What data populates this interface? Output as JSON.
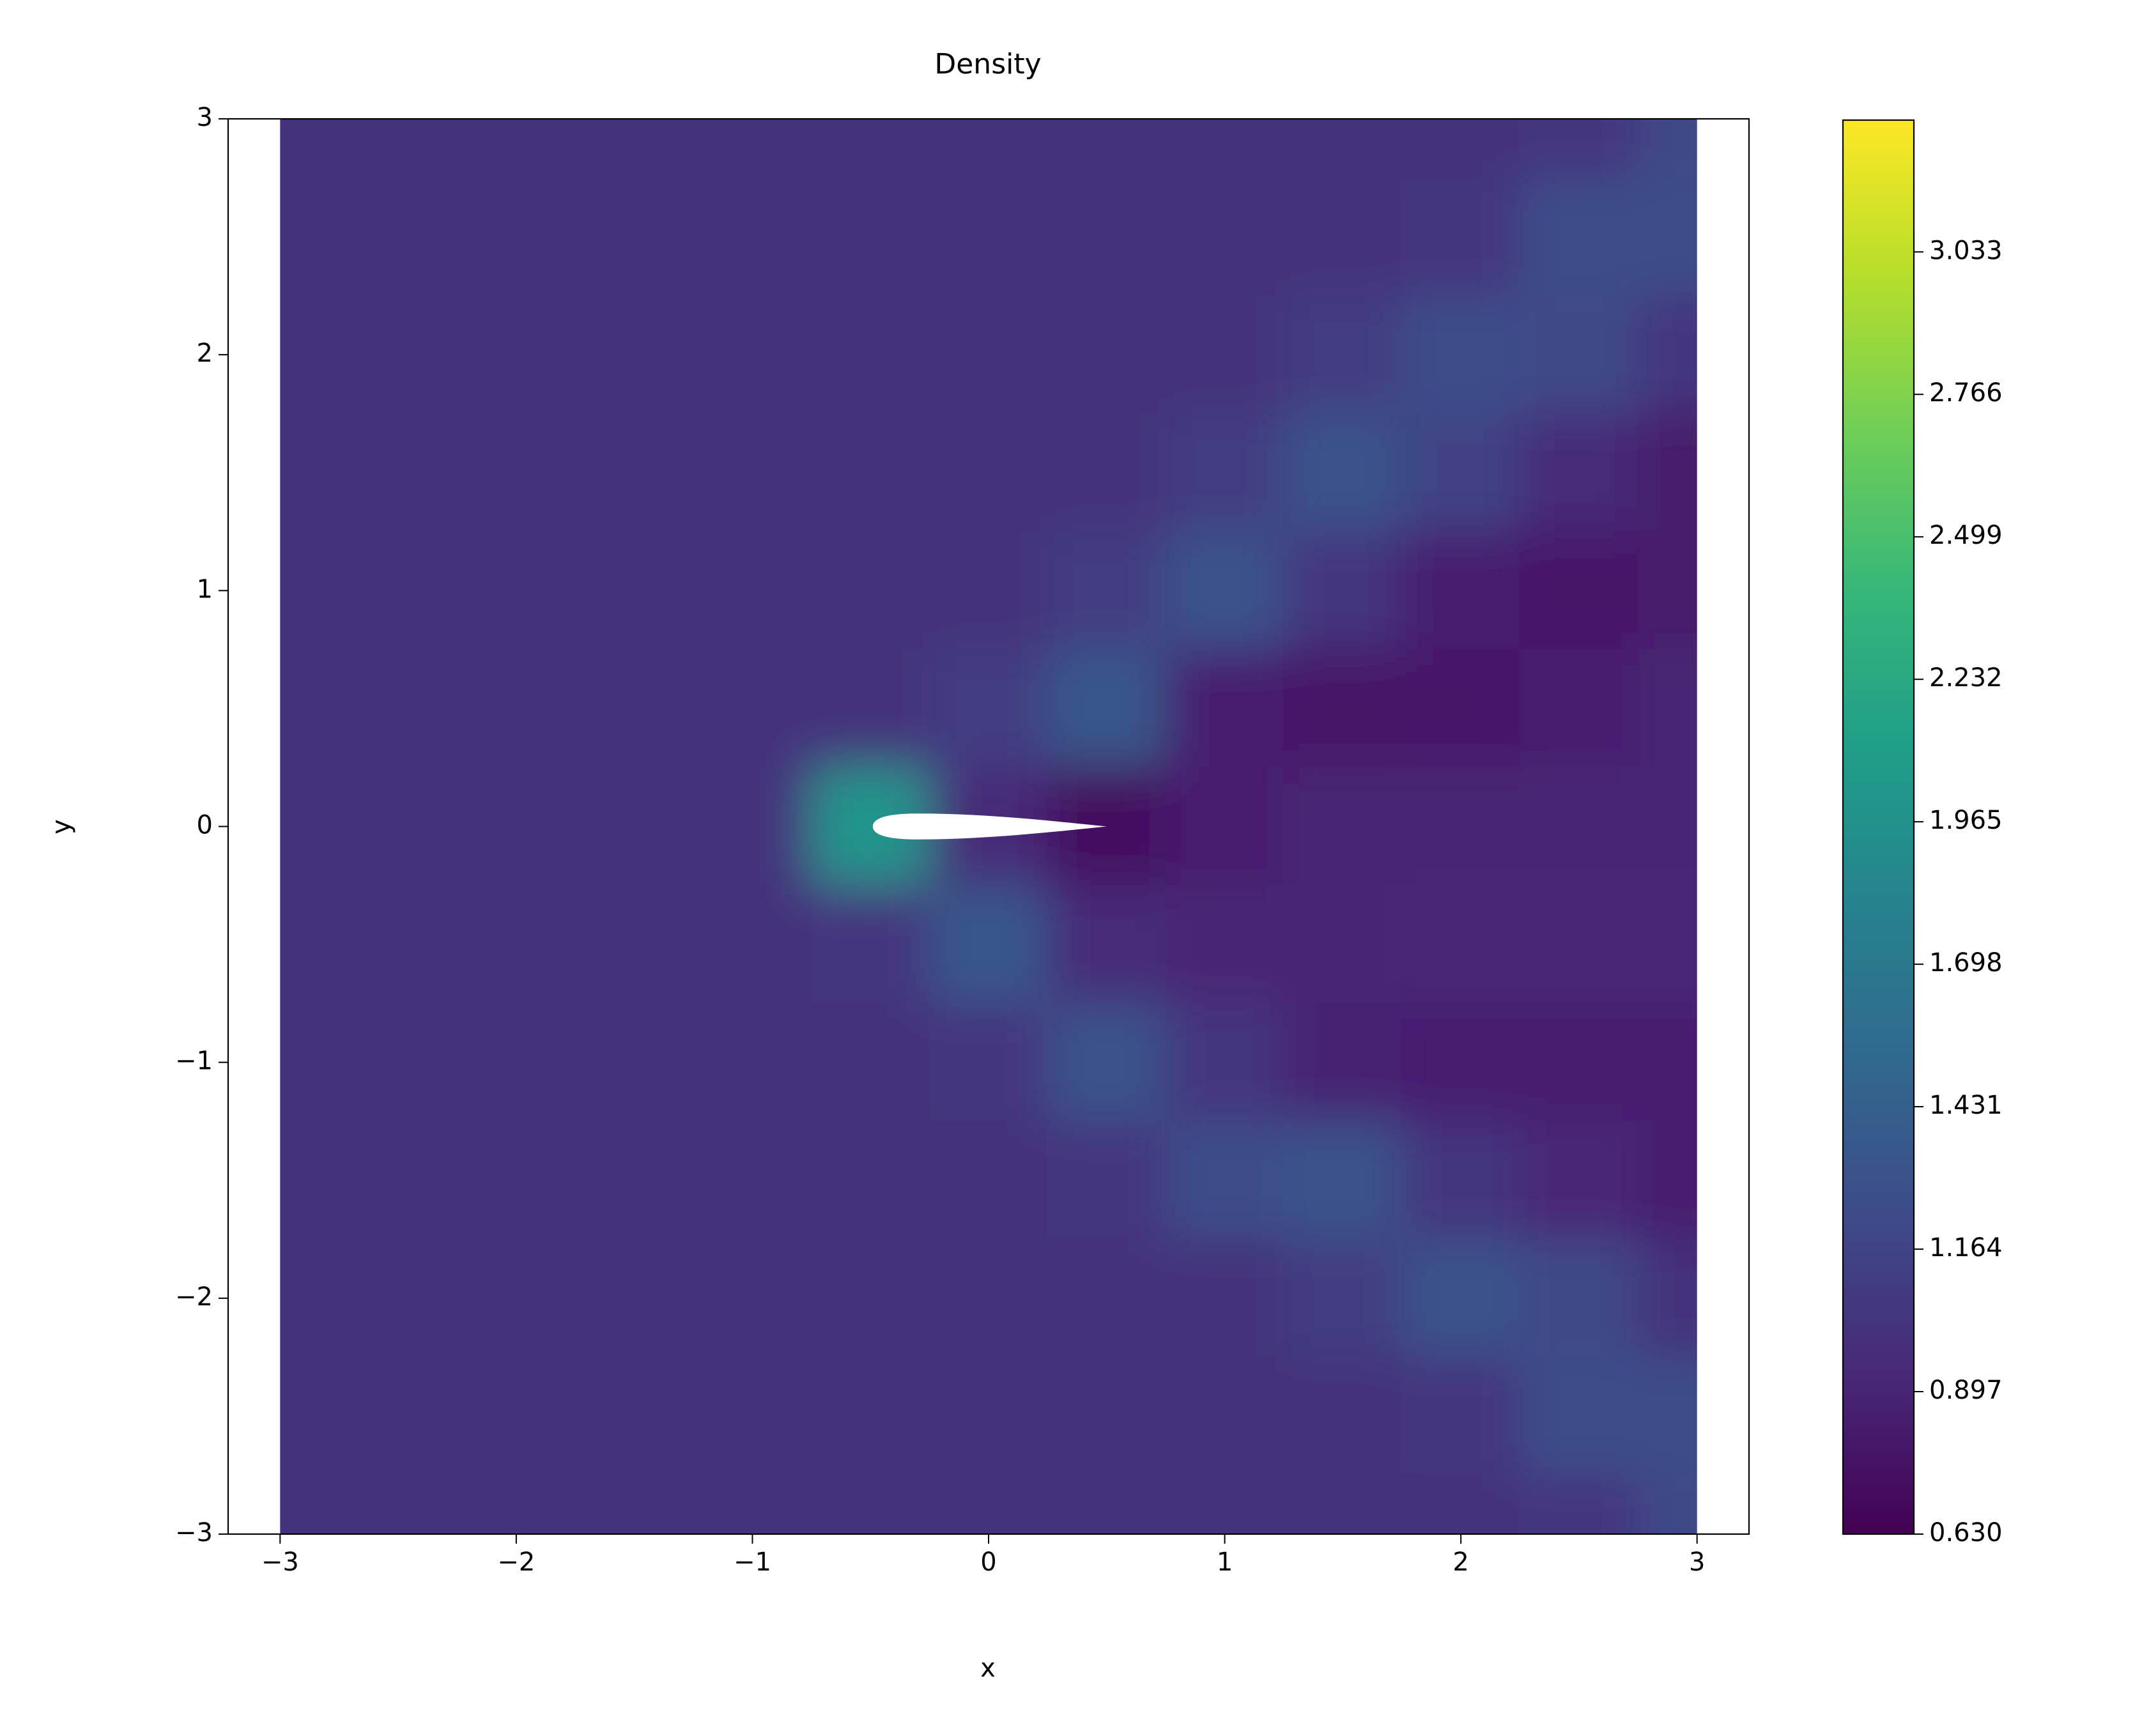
{
  "chart_data": {
    "type": "heatmap",
    "title": "Density",
    "xlabel": "x",
    "ylabel": "y",
    "x": [
      -3,
      -2.5,
      -2,
      -1.5,
      -1,
      -0.5,
      0,
      0.5,
      1,
      1.5,
      2,
      2.5,
      3
    ],
    "y": [
      3,
      2.5,
      2,
      1.5,
      1,
      0.5,
      0,
      -0.5,
      -1,
      -1.5,
      -2,
      -2.5,
      -3
    ],
    "z": [
      [
        1,
        1,
        1,
        1,
        1,
        1,
        1,
        1,
        1,
        1,
        1,
        1.05,
        1.2
      ],
      [
        1,
        1,
        1,
        1,
        1,
        1,
        1,
        1,
        1,
        1,
        1.05,
        1.25,
        1.25
      ],
      [
        1,
        1,
        1,
        1,
        1,
        1,
        1,
        1,
        1,
        1.1,
        1.25,
        1.2,
        1.05
      ],
      [
        1,
        1,
        1,
        1,
        1,
        1,
        1,
        1,
        1.1,
        1.3,
        1.15,
        0.95,
        0.82
      ],
      [
        1,
        1,
        1,
        1,
        1,
        1,
        1,
        1.1,
        1.3,
        1.05,
        0.85,
        0.8,
        0.82
      ],
      [
        1,
        1,
        1,
        1,
        1,
        1,
        1.1,
        1.35,
        0.85,
        0.78,
        0.8,
        0.86,
        0.9
      ],
      [
        1,
        1,
        1,
        1,
        1,
        2,
        0.95,
        0.72,
        0.85,
        0.9,
        0.9,
        0.9,
        0.9
      ],
      [
        1,
        1,
        1,
        1,
        1,
        1.05,
        1.35,
        0.95,
        0.9,
        0.9,
        0.92,
        0.92,
        0.92
      ],
      [
        1,
        1,
        1,
        1,
        1,
        1,
        1.05,
        1.3,
        1.05,
        0.88,
        0.85,
        0.85,
        0.85
      ],
      [
        1,
        1,
        1,
        1,
        1,
        1,
        1,
        1.05,
        1.25,
        1.3,
        1.05,
        0.92,
        0.86
      ],
      [
        1,
        1,
        1,
        1,
        1,
        1,
        1,
        1,
        1,
        1.1,
        1.3,
        1.2,
        1.0
      ],
      [
        1,
        1,
        1,
        1,
        1,
        1,
        1,
        1,
        1,
        1,
        1.05,
        1.25,
        1.25
      ],
      [
        1,
        1,
        1,
        1,
        1,
        1,
        1,
        1,
        1,
        1,
        1,
        1.05,
        1.2
      ]
    ],
    "colormap": "viridis",
    "xlim": [
      -3.22,
      3.22
    ],
    "ylim": [
      -3,
      3
    ],
    "xticks": [
      {
        "value": -3,
        "label": "−3"
      },
      {
        "value": -2,
        "label": "−2"
      },
      {
        "value": -1,
        "label": "−1"
      },
      0,
      1,
      2,
      3
    ],
    "yticks": [
      {
        "value": -3,
        "label": "−3"
      },
      {
        "value": -2,
        "label": "−2"
      },
      {
        "value": -1,
        "label": "−1"
      },
      0,
      1,
      2,
      3
    ],
    "zlim": [
      0.63,
      3.28
    ],
    "zticks": [
      {
        "value": 0.63,
        "label": "0.630"
      },
      0.897,
      1.164,
      1.431,
      1.698,
      1.965,
      2.232,
      2.499,
      2.766,
      3.033
    ]
  }
}
